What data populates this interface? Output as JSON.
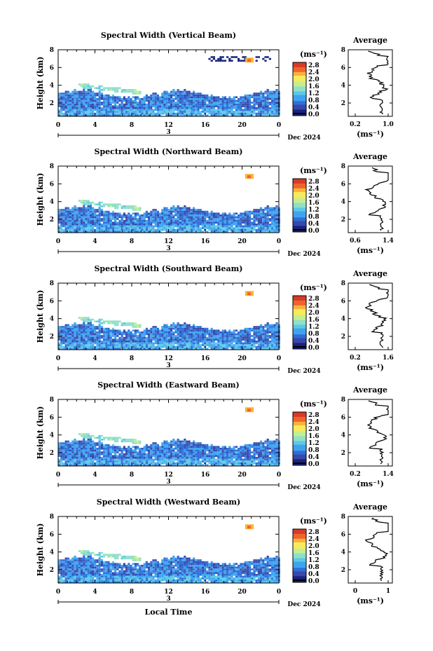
{
  "figure": {
    "x_axis_label": "Local Time",
    "date_label": "Dec 2024",
    "day_label": "3",
    "colorbar_unit": "(ms⁻¹)",
    "colorbar_ticks": [
      "0.0",
      "0.4",
      "0.8",
      "1.2",
      "1.6",
      "2.0",
      "2.4",
      "2.8"
    ],
    "colorbar_ticks_flat": [
      "0.0",
      "0.4",
      "0.8",
      "1.2",
      "1.6",
      "2.0",
      "2.4",
      "2.8"
    ],
    "colors": {
      "scale": [
        "#1a237e",
        "#3949ab",
        "#2f6fd8",
        "#3fa3f0",
        "#5cc9e6",
        "#8fe0c8",
        "#c4ee90",
        "#f7ea5c",
        "#f9b33b",
        "#f0642c",
        "#d93a26"
      ]
    }
  },
  "chart_data": [
    {
      "type": "heatmap",
      "title": "Spectral Width (Vertical Beam)",
      "ylabel": "Height (km)",
      "x_ticks": [
        "0",
        "4",
        "8",
        "12",
        "16",
        "20",
        "0"
      ],
      "y_ticks": [
        "2",
        "4",
        "6",
        "8"
      ],
      "xlim": [
        0,
        24
      ],
      "ylim": [
        0.5,
        8
      ],
      "profile": {
        "title": "Average",
        "xlabel": "(ms⁻¹)",
        "x_ticks": [
          "0.2",
          "1.0"
        ],
        "y_ticks": [
          "2",
          "4",
          "6",
          "8"
        ]
      }
    },
    {
      "type": "heatmap",
      "title": "Spectral Width (Northward Beam)",
      "ylabel": "Height (km)",
      "x_ticks": [
        "0",
        "4",
        "8",
        "12",
        "16",
        "20",
        "0"
      ],
      "y_ticks": [
        "2",
        "4",
        "6",
        "8"
      ],
      "xlim": [
        0,
        24
      ],
      "ylim": [
        0.5,
        8
      ],
      "profile": {
        "title": "Average",
        "xlabel": "(ms⁻¹)",
        "x_ticks": [
          "0.6",
          "1.4"
        ],
        "y_ticks": [
          "2",
          "4",
          "6",
          "8"
        ]
      }
    },
    {
      "type": "heatmap",
      "title": "Spectral Width (Southward Beam)",
      "ylabel": "Height (km)",
      "x_ticks": [
        "0",
        "4",
        "8",
        "12",
        "16",
        "20",
        "0"
      ],
      "y_ticks": [
        "2",
        "4",
        "6",
        "8"
      ],
      "xlim": [
        0,
        24
      ],
      "ylim": [
        0.5,
        8
      ],
      "profile": {
        "title": "Average",
        "xlabel": "(ms⁻¹)",
        "x_ticks": [
          "0.2",
          "1.6"
        ],
        "y_ticks": [
          "2",
          "4",
          "6",
          "8"
        ]
      }
    },
    {
      "type": "heatmap",
      "title": "Spectral Width (Eastward Beam)",
      "ylabel": "Height (km)",
      "x_ticks": [
        "0",
        "4",
        "8",
        "12",
        "16",
        "20",
        "0"
      ],
      "y_ticks": [
        "2",
        "4",
        "6",
        "8"
      ],
      "xlim": [
        0,
        24
      ],
      "ylim": [
        0.5,
        8
      ],
      "profile": {
        "title": "Average",
        "xlabel": "(ms⁻¹)",
        "x_ticks": [
          "0.2",
          "1.4"
        ],
        "y_ticks": [
          "2",
          "4",
          "6",
          "8"
        ]
      }
    },
    {
      "type": "heatmap",
      "title": "Spectral Width (Westward Beam)",
      "ylabel": "Height (km)",
      "x_ticks": [
        "0",
        "4",
        "8",
        "12",
        "16",
        "20",
        "0"
      ],
      "y_ticks": [
        "2",
        "4",
        "6",
        "8"
      ],
      "xlim": [
        0,
        24
      ],
      "ylim": [
        0.5,
        8
      ],
      "profile": {
        "title": "Average",
        "xlabel": "(ms⁻¹)",
        "x_ticks": [
          "0",
          "1"
        ],
        "y_ticks": [
          "2",
          "4",
          "6",
          "8"
        ]
      }
    }
  ]
}
